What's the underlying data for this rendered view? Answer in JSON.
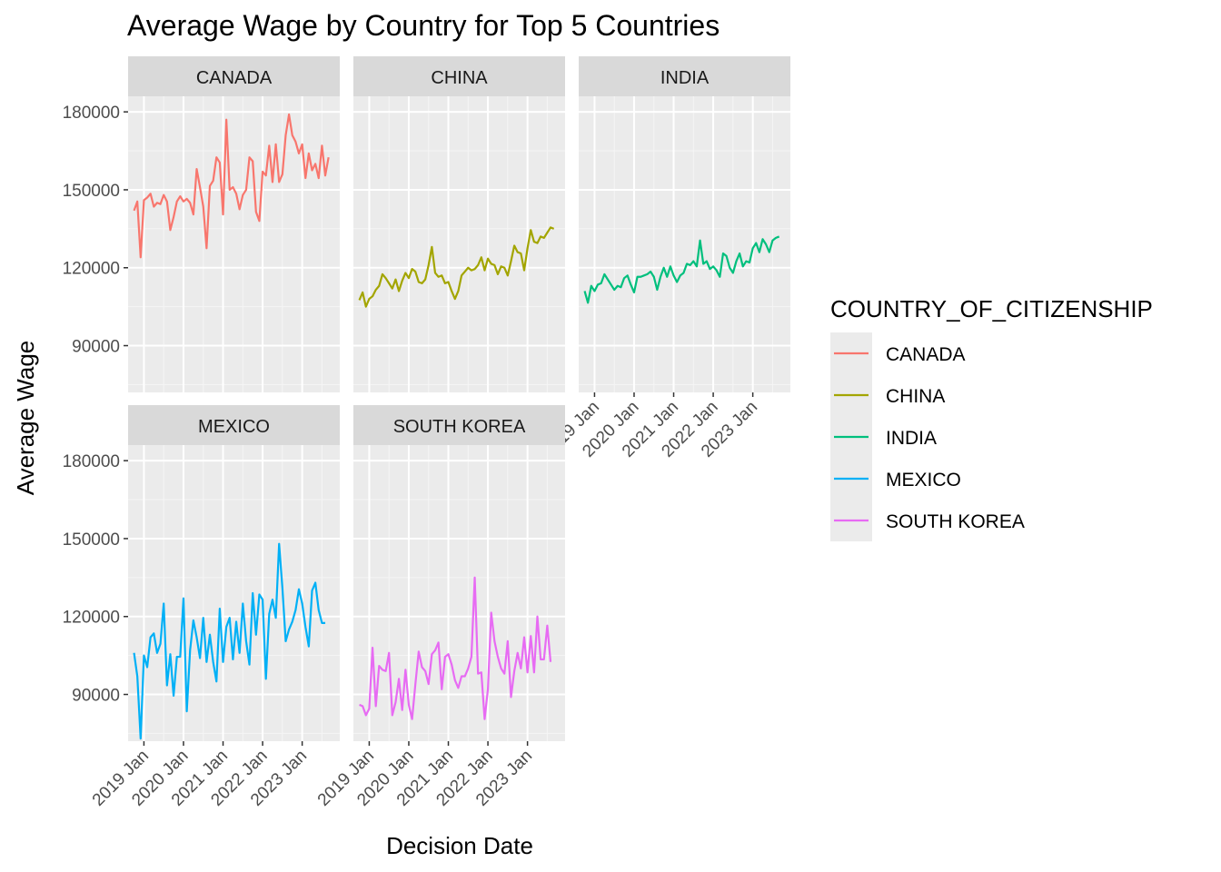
{
  "chart_data": {
    "type": "line",
    "title": "Average Wage by Country for Top 5 Countries",
    "xlabel": "Decision Date",
    "ylabel": "Average Wage",
    "x_unit": "year",
    "xlim": [
      2018.6,
      2023.95
    ],
    "ylim": [
      72000,
      186000
    ],
    "y_ticks": [
      90000,
      120000,
      150000,
      180000
    ],
    "x_ticks": [
      {
        "value": 2019,
        "label": "2019 Jan"
      },
      {
        "value": 2020,
        "label": "2020 Jan"
      },
      {
        "value": 2021,
        "label": "2021 Jan"
      },
      {
        "value": 2022,
        "label": "2022 Jan"
      },
      {
        "value": 2023,
        "label": "2023 Jan"
      }
    ],
    "x_start": 2018.75,
    "x_step_months": 1,
    "legend": {
      "title": "COUNTRY_OF_CITIZENSHIP",
      "position": "right"
    },
    "grid": true,
    "series": [
      {
        "name": "CANADA",
        "color": "#F8766D",
        "values": [
          142000,
          145500,
          124000,
          146000,
          147000,
          148500,
          143500,
          145000,
          144500,
          148000,
          145500,
          134500,
          139500,
          145500,
          147500,
          145500,
          146500,
          145000,
          140500,
          158000,
          151000,
          143500,
          127500,
          151500,
          153500,
          162500,
          160500,
          140500,
          177000,
          150000,
          151000,
          148500,
          142500,
          148000,
          150000,
          162500,
          161000,
          141500,
          138000,
          157000,
          155500,
          167000,
          153000,
          167500,
          153000,
          156000,
          171000,
          179000,
          171000,
          168500,
          164000,
          167500,
          154500,
          164000,
          157500,
          160000,
          154500,
          167000,
          155500,
          162500
        ]
      },
      {
        "name": "CHINA",
        "color": "#A3A500",
        "values": [
          107500,
          110500,
          105000,
          108000,
          109000,
          111500,
          113000,
          117500,
          116000,
          114000,
          112000,
          115500,
          111000,
          115000,
          118000,
          116000,
          119500,
          118500,
          114500,
          114000,
          115500,
          121000,
          128000,
          118000,
          116500,
          117000,
          114000,
          114500,
          111000,
          108000,
          111000,
          117000,
          118500,
          120000,
          119000,
          119500,
          121000,
          124000,
          119000,
          123500,
          121500,
          121000,
          117500,
          120500,
          120000,
          117000,
          122500,
          128500,
          126000,
          125500,
          119000,
          127500,
          134500,
          130000,
          129500,
          132000,
          131500,
          133500,
          135500,
          135000
        ]
      },
      {
        "name": "INDIA",
        "color": "#00BF7D",
        "values": [
          111000,
          106500,
          113000,
          111000,
          113500,
          114000,
          117500,
          115500,
          113500,
          111500,
          113000,
          112500,
          116000,
          117000,
          113500,
          110500,
          116500,
          116500,
          117000,
          117500,
          118500,
          116500,
          111500,
          116500,
          120000,
          116500,
          120500,
          117000,
          114500,
          117000,
          118000,
          121500,
          121000,
          122500,
          120500,
          130500,
          121500,
          122500,
          119500,
          120500,
          119000,
          116500,
          125500,
          124500,
          120000,
          118000,
          122500,
          125500,
          120500,
          122500,
          122000,
          127500,
          129500,
          126000,
          131000,
          129000,
          126000,
          130500,
          131500,
          132000
        ]
      },
      {
        "name": "MEXICO",
        "color": "#00B0F6",
        "values": [
          106000,
          97000,
          73000,
          105000,
          100500,
          112000,
          113500,
          106000,
          109500,
          125000,
          93500,
          105500,
          89500,
          104500,
          104500,
          127000,
          83500,
          107000,
          118500,
          112000,
          104000,
          119500,
          102500,
          113000,
          102500,
          95000,
          123000,
          102500,
          116000,
          119500,
          103500,
          118000,
          106000,
          125000,
          110500,
          101500,
          129000,
          113000,
          128500,
          126500,
          96000,
          121000,
          126500,
          119500,
          148000,
          131000,
          110500,
          115000,
          118000,
          122500,
          130500,
          125000,
          116000,
          108500,
          130000,
          133000,
          122500,
          117500,
          117500
        ]
      },
      {
        "name": "SOUTH KOREA",
        "color": "#E76BF3",
        "values": [
          86000,
          85500,
          82000,
          84500,
          108000,
          85500,
          101000,
          99500,
          99000,
          106000,
          82000,
          87000,
          96000,
          84000,
          99500,
          86000,
          80500,
          94000,
          106500,
          100500,
          99000,
          94000,
          105500,
          107000,
          110000,
          92000,
          104500,
          105500,
          101500,
          95500,
          92500,
          97000,
          97000,
          100000,
          104500,
          135000,
          98000,
          98500,
          80500,
          92000,
          121500,
          110500,
          104500,
          100000,
          98000,
          110500,
          89000,
          99000,
          106000,
          100000,
          112000,
          98500,
          112500,
          98500,
          120000,
          103500,
          103500,
          116500,
          102500
        ]
      }
    ]
  }
}
